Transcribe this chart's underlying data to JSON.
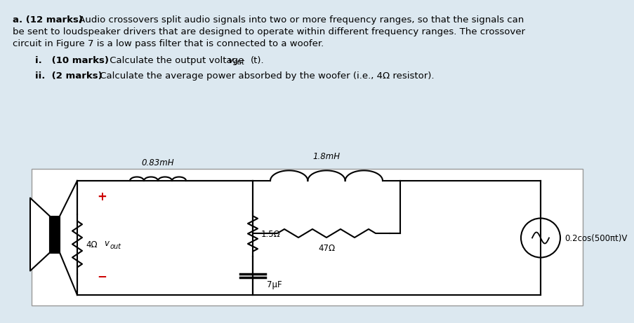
{
  "bg_color": "#dce8f0",
  "circuit_bg": "#ffffff",
  "text_color": "#000000",
  "red_color": "#cc0000",
  "L1_label": "0.83mH",
  "L2_label": "1.8mH",
  "R1_label": "1.5Ω",
  "R2_label": "47Ω",
  "C_label": "7μF",
  "woofer_R_label": "4Ω",
  "vout_label": "v",
  "vout_sub": "out",
  "source_label": "0.2cos(500πt)V",
  "line_a_bold": "a. (12 marks)",
  "line_a_rest": " Audio crossovers split audio signals into two or more frequency ranges, so that the signals can",
  "line_b": "be sent to loudspeaker drivers that are designed to operate within different frequency ranges. The crossover",
  "line_c": "circuit in Figure 7 is a low pass filter that is connected to a woofer.",
  "line_i_bold": "i.   (10 marks)",
  "line_i_rest": " Calculate the output voltage ",
  "line_i_end": "(t).",
  "line_ii_bold": "ii.  (2 marks)",
  "line_ii_rest": " Calculate the average power absorbed by the woofer (i.e., 4Ω resistor).",
  "font_size": 9.5
}
